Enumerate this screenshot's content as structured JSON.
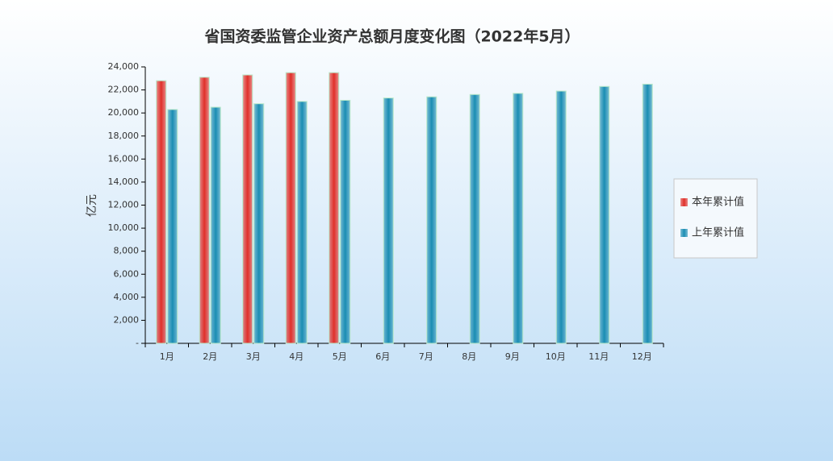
{
  "chart_data": {
    "type": "bar",
    "title": "省国资委监管企业资产总额月度变化图（2022年5月）",
    "y_label": "亿元",
    "categories": [
      "1月",
      "2月",
      "3月",
      "4月",
      "5月",
      "6月",
      "7月",
      "8月",
      "9月",
      "10月",
      "11月",
      "12月"
    ],
    "series": [
      {
        "name": "本年累计值",
        "color": "#e0302a",
        "values": [
          22800,
          23100,
          23300,
          23500,
          23500,
          null,
          null,
          null,
          null,
          null,
          null,
          null
        ]
      },
      {
        "name": "上年累计值",
        "color": "#1a8db3",
        "values": [
          20300,
          20500,
          20800,
          21000,
          21100,
          21300,
          21400,
          21600,
          21700,
          21900,
          22300,
          22500
        ]
      }
    ],
    "ylim": [
      0,
      24000
    ],
    "yticks": [
      {
        "value": 0,
        "label": "-"
      },
      {
        "value": 2000,
        "label": "2,000"
      },
      {
        "value": 4000,
        "label": "4,000"
      },
      {
        "value": 6000,
        "label": "6,000"
      },
      {
        "value": 8000,
        "label": "8,000"
      },
      {
        "value": 10000,
        "label": "10,000"
      },
      {
        "value": 12000,
        "label": "12,000"
      },
      {
        "value": 14000,
        "label": "14,000"
      },
      {
        "value": 16000,
        "label": "16,000"
      },
      {
        "value": 18000,
        "label": "18,000"
      },
      {
        "value": 20000,
        "label": "20,000"
      },
      {
        "value": 22000,
        "label": "22,000"
      },
      {
        "value": 24000,
        "label": "24,000"
      }
    ],
    "legend": "right"
  }
}
